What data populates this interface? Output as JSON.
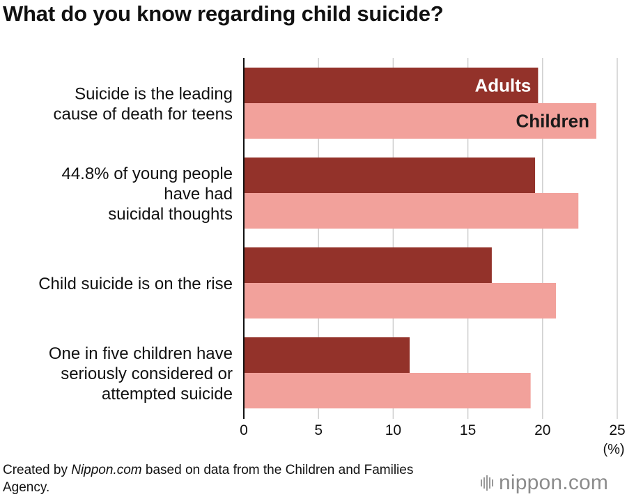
{
  "title": "What do you know regarding child suicide?",
  "chart_data": {
    "type": "bar",
    "orientation": "horizontal",
    "categories": [
      [
        "Suicide is the leading",
        "cause of death for teens"
      ],
      [
        "44.8% of young people",
        "have had",
        "suicidal thoughts"
      ],
      [
        "Child suicide is on the rise"
      ],
      [
        "One in five children have",
        "seriously considered or",
        "attempted suicide"
      ]
    ],
    "series": [
      {
        "name": "Adults",
        "color": "#93322a",
        "label_color": "#ffffff",
        "values": [
          19.7,
          19.5,
          16.6,
          11.1
        ]
      },
      {
        "name": "Children",
        "color": "#f2a19b",
        "label_color": "#1a1a1a",
        "values": [
          23.6,
          22.4,
          20.9,
          19.2
        ]
      }
    ],
    "xlim": [
      0,
      25
    ],
    "xticks": [
      "0",
      "5",
      "10",
      "15",
      "20",
      "25"
    ],
    "unit_label": "(%)",
    "grid": true,
    "legend": "inline labels on first group"
  },
  "footer": {
    "prefix": "Created by ",
    "source": "Nippon.com",
    "suffix": " based on data from the Children and Families Agency."
  },
  "logo": {
    "text": "nippon.com",
    "icon": "nippon-bars-icon"
  }
}
